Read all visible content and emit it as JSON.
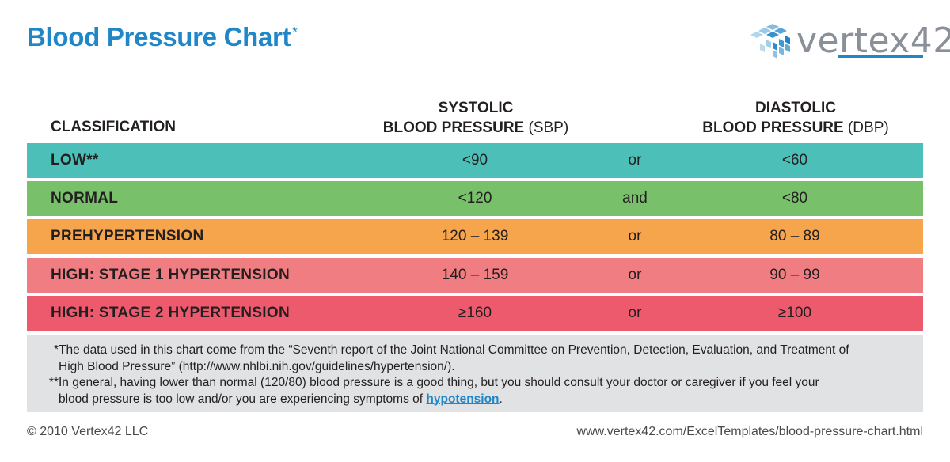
{
  "title": "Blood Pressure Chart",
  "title_mark": "*",
  "logo": {
    "text": "vertex42",
    "icon": "vertex42-cube-logo-icon"
  },
  "headers": {
    "classification": "CLASSIFICATION",
    "sbp_line1": "SYSTOLIC",
    "sbp_line2_bold": "BLOOD PRESSURE",
    "sbp_line2_abbr": "(SBP)",
    "dbp_line1": "DIASTOLIC",
    "dbp_line2_bold": "BLOOD PRESSURE",
    "dbp_line2_abbr": "(DBP)"
  },
  "rows": [
    {
      "name": "LOW**",
      "sbp": "<90",
      "conj": "or",
      "dbp": "<60",
      "color": "#4cc0b8"
    },
    {
      "name": "NORMAL",
      "sbp": "<120",
      "conj": "and",
      "dbp": "<80",
      "color": "#79c06b"
    },
    {
      "name": "PREHYPERTENSION",
      "sbp": "120 – 139",
      "conj": "or",
      "dbp": "80 – 89",
      "color": "#f6a54c"
    },
    {
      "name": "HIGH: STAGE 1 HYPERTENSION",
      "sbp": "140 – 159",
      "conj": "or",
      "dbp": "90 – 99",
      "color": "#f07d82"
    },
    {
      "name": "HIGH: STAGE 2 HYPERTENSION",
      "sbp": "≥160",
      "conj": "or",
      "dbp": "≥100",
      "color": "#ee5a6d"
    }
  ],
  "notes": {
    "note1_mark": "*",
    "note1_line1": "The data used in this chart come from the “Seventh report of the Joint National Committee on Prevention, Detection, Evaluation, and Treatment of",
    "note1_line2": "High Blood Pressure” (http://www.nhlbi.nih.gov/guidelines/hypertension/).",
    "note2_mark": "**",
    "note2_line1": "In general, having lower than normal (120/80) blood pressure is a good thing, but you should consult your doctor or caregiver if you feel your",
    "note2_line2_pre": "blood pressure is too low and/or you are experiencing symptoms of ",
    "note2_link": "hypotension",
    "note2_line2_post": "."
  },
  "footer": {
    "copyright": "© 2010 Vertex42 LLC",
    "url": "www.vertex42.com/ExcelTemplates/blood-pressure-chart.html"
  }
}
